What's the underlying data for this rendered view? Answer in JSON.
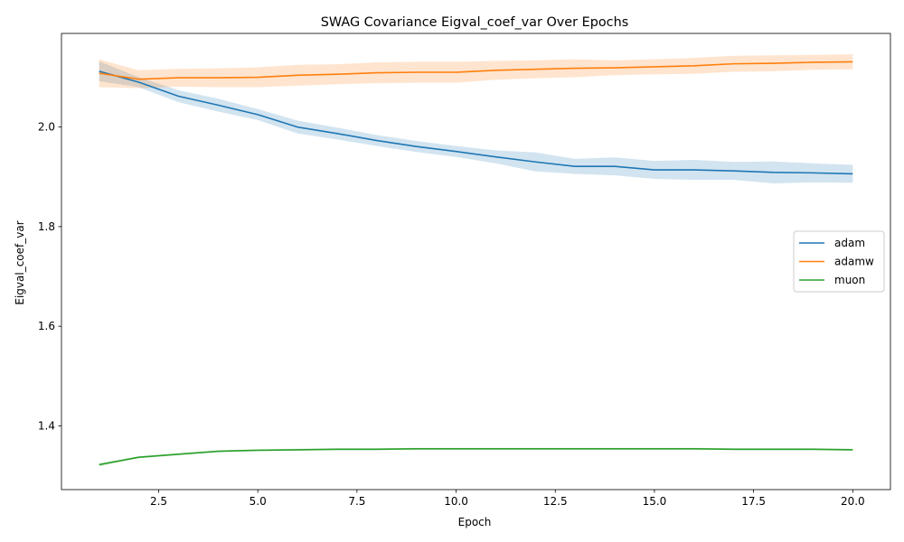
{
  "chart_data": {
    "type": "line",
    "title": "SWAG Covariance Eigval_coef_var Over Epochs",
    "xlabel": "Epoch",
    "ylabel": "Eigval_coef_var",
    "xlim": [
      0.05,
      20.95
    ],
    "ylim": [
      1.272,
      2.188
    ],
    "xticks": [
      2.5,
      5.0,
      7.5,
      10.0,
      12.5,
      15.0,
      17.5,
      20.0
    ],
    "xtick_labels": [
      "2.5",
      "5.0",
      "7.5",
      "10.0",
      "12.5",
      "15.0",
      "17.5",
      "20.0"
    ],
    "yticks": [
      1.4,
      1.6,
      1.8,
      2.0
    ],
    "ytick_labels": [
      "1.4",
      "1.6",
      "1.8",
      "2.0"
    ],
    "grid": false,
    "legend_position": "center-right",
    "x": [
      1,
      2,
      3,
      4,
      5,
      6,
      7,
      8,
      9,
      10,
      11,
      12,
      13,
      14,
      15,
      16,
      17,
      18,
      19,
      20
    ],
    "series": [
      {
        "name": "adam",
        "color": "#1f77b4",
        "values": [
          2.112,
          2.09,
          2.062,
          2.044,
          2.025,
          2.0,
          1.987,
          1.973,
          1.961,
          1.951,
          1.94,
          1.93,
          1.921,
          1.921,
          1.914,
          1.914,
          1.912,
          1.909,
          1.908,
          1.906
        ],
        "lower": [
          2.092,
          2.08,
          2.05,
          2.031,
          2.014,
          1.987,
          1.975,
          1.962,
          1.95,
          1.94,
          1.927,
          1.911,
          1.906,
          1.903,
          1.896,
          1.894,
          1.894,
          1.887,
          1.889,
          1.888
        ],
        "upper": [
          2.132,
          2.1,
          2.074,
          2.057,
          2.036,
          2.013,
          1.999,
          1.984,
          1.972,
          1.962,
          1.953,
          1.949,
          1.936,
          1.939,
          1.932,
          1.934,
          1.93,
          1.931,
          1.927,
          1.924
        ]
      },
      {
        "name": "adamw",
        "color": "#ff7f0e",
        "values": [
          2.108,
          2.096,
          2.099,
          2.099,
          2.1,
          2.104,
          2.106,
          2.109,
          2.11,
          2.11,
          2.114,
          2.116,
          2.118,
          2.119,
          2.121,
          2.123,
          2.127,
          2.128,
          2.13,
          2.131
        ],
        "lower": [
          2.08,
          2.078,
          2.081,
          2.08,
          2.08,
          2.083,
          2.086,
          2.088,
          2.089,
          2.089,
          2.095,
          2.098,
          2.1,
          2.104,
          2.106,
          2.107,
          2.111,
          2.112,
          2.115,
          2.116
        ],
        "upper": [
          2.136,
          2.114,
          2.117,
          2.118,
          2.12,
          2.125,
          2.126,
          2.13,
          2.131,
          2.131,
          2.133,
          2.134,
          2.136,
          2.134,
          2.136,
          2.139,
          2.143,
          2.144,
          2.145,
          2.146
        ]
      },
      {
        "name": "muon",
        "color": "#2ca02c",
        "values": [
          1.322,
          1.337,
          1.343,
          1.349,
          1.351,
          1.352,
          1.353,
          1.353,
          1.354,
          1.354,
          1.354,
          1.354,
          1.354,
          1.354,
          1.354,
          1.354,
          1.353,
          1.353,
          1.353,
          1.352
        ],
        "lower": [
          1.319,
          1.335,
          1.341,
          1.347,
          1.349,
          1.35,
          1.351,
          1.351,
          1.352,
          1.352,
          1.352,
          1.352,
          1.352,
          1.352,
          1.352,
          1.352,
          1.351,
          1.351,
          1.351,
          1.35
        ],
        "upper": [
          1.325,
          1.339,
          1.345,
          1.351,
          1.353,
          1.354,
          1.355,
          1.355,
          1.356,
          1.356,
          1.356,
          1.356,
          1.356,
          1.356,
          1.356,
          1.356,
          1.355,
          1.355,
          1.355,
          1.354
        ]
      }
    ]
  }
}
